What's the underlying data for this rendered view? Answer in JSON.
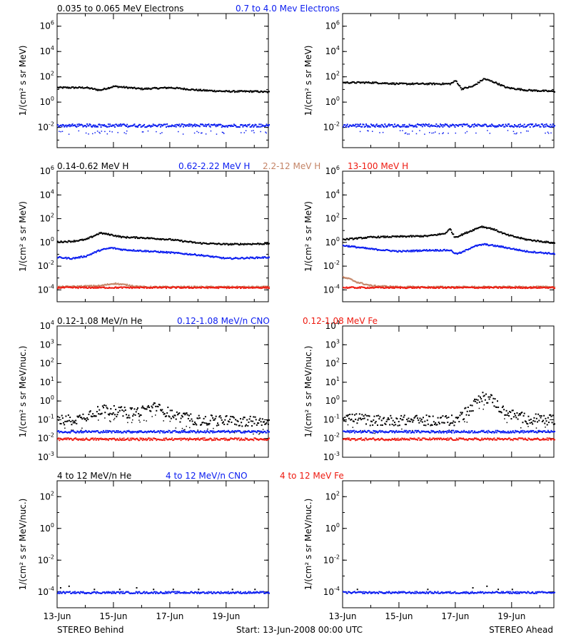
{
  "colors": {
    "black": "#000000",
    "blue": "#0a1cf0",
    "brown": "#c48466",
    "red": "#ee1a10"
  },
  "footer": {
    "left": "STEREO Behind",
    "center": "Start: 13-Jun-2008 00:00 UTC",
    "right": "STEREO Ahead"
  },
  "x_ticks": [
    "13-Jun",
    "15-Jun",
    "17-Jun",
    "19-Jun"
  ],
  "rows": [
    {
      "ylabel": "1/(cm² s sr MeV)",
      "legend": [
        {
          "text": "0.035 to 0.065 MeV Electrons",
          "color": "black"
        },
        {
          "text": "0.7 to 4.0 Mev Electrons",
          "color": "blue"
        }
      ],
      "y_ticks": [
        {
          "mant": "10",
          "exp": "6",
          "v": 6
        },
        {
          "mant": "10",
          "exp": "4",
          "v": 4
        },
        {
          "mant": "10",
          "exp": "2",
          "v": 2
        },
        {
          "mant": "10",
          "exp": "0",
          "v": 0
        },
        {
          "mant": "10",
          "exp": "-2",
          "v": -2
        }
      ]
    },
    {
      "ylabel": "1/(cm² s sr MeV)",
      "legend": [
        {
          "text": "0.14-0.62 MeV H",
          "color": "black"
        },
        {
          "text": "0.62-2.22 MeV H",
          "color": "blue"
        },
        {
          "text": "2.2-12 MeV H",
          "color": "brown"
        },
        {
          "text": "13-100 MeV H",
          "color": "red"
        }
      ],
      "y_ticks": [
        {
          "mant": "10",
          "exp": "6",
          "v": 6
        },
        {
          "mant": "10",
          "exp": "4",
          "v": 4
        },
        {
          "mant": "10",
          "exp": "2",
          "v": 2
        },
        {
          "mant": "10",
          "exp": "0",
          "v": 0
        },
        {
          "mant": "10",
          "exp": "-2",
          "v": -2
        },
        {
          "mant": "10",
          "exp": "-4",
          "v": -4
        }
      ]
    },
    {
      "ylabel": "1/(cm² s sr MeV/nuc.)",
      "legend": [
        {
          "text": "0.12-1.08 MeV/n He",
          "color": "black"
        },
        {
          "text": "0.12-1.08 MeV/n CNO",
          "color": "blue"
        },
        {
          "text": "0.12-1.08 MeV Fe",
          "color": "red"
        }
      ],
      "y_ticks": [
        {
          "mant": "10",
          "exp": "4",
          "v": 4
        },
        {
          "mant": "10",
          "exp": "3",
          "v": 3
        },
        {
          "mant": "10",
          "exp": "2",
          "v": 2
        },
        {
          "mant": "10",
          "exp": "1",
          "v": 1
        },
        {
          "mant": "10",
          "exp": "0",
          "v": 0
        },
        {
          "mant": "10",
          "exp": "-1",
          "v": -1
        },
        {
          "mant": "10",
          "exp": "-2",
          "v": -2
        },
        {
          "mant": "10",
          "exp": "-3",
          "v": -3
        }
      ]
    },
    {
      "ylabel": "1/(cm² s sr MeV/nuc.)",
      "legend": [
        {
          "text": "4 to 12 MeV/n He",
          "color": "black"
        },
        {
          "text": "4 to 12 MeV/n CNO",
          "color": "blue"
        },
        {
          "text": "4 to 12 MeV Fe",
          "color": "red"
        }
      ],
      "y_ticks": [
        {
          "mant": "10",
          "exp": "2",
          "v": 2
        },
        {
          "mant": "10",
          "exp": "0",
          "v": 0
        },
        {
          "mant": "10",
          "exp": "-2",
          "v": -2
        },
        {
          "mant": "10",
          "exp": "-4",
          "v": -4
        }
      ]
    }
  ],
  "chart_data": [
    {
      "panel": "STEREO Behind electrons",
      "type": "scatter",
      "x_unit": "days since 13-Jun-2008",
      "yscale": "log",
      "ylim_log10": [
        -3.6,
        7
      ],
      "xlim": [
        0,
        7.5
      ],
      "series": [
        {
          "name": "0.035 to 0.065 MeV Electrons",
          "color": "black",
          "x": [
            0,
            1,
            1.5,
            2,
            3,
            4,
            5,
            6,
            7,
            7.5
          ],
          "y_log10": [
            1.2,
            1.2,
            1.0,
            1.3,
            1.1,
            1.2,
            1.0,
            0.9,
            0.9,
            0.85
          ]
        },
        {
          "name": "0.7 to 4.0 Mev Electrons",
          "color": "blue",
          "x": [
            0,
            2,
            4,
            6,
            7.5
          ],
          "y_log10": [
            -1.8,
            -1.8,
            -1.8,
            -1.8,
            -1.8
          ]
        }
      ]
    },
    {
      "panel": "STEREO Ahead electrons",
      "type": "scatter",
      "x_unit": "days since 13-Jun-2008",
      "yscale": "log",
      "ylim_log10": [
        -3.6,
        7
      ],
      "xlim": [
        0,
        7.5
      ],
      "series": [
        {
          "name": "0.035 to 0.065 MeV Electrons",
          "color": "black",
          "x": [
            0,
            1,
            2,
            3,
            3.8,
            4.0,
            4.2,
            4.6,
            5.0,
            5.4,
            5.8,
            6.5,
            7.5
          ],
          "y_log10": [
            1.6,
            1.6,
            1.5,
            1.5,
            1.5,
            1.75,
            1.1,
            1.3,
            1.9,
            1.6,
            1.2,
            1.0,
            0.9
          ]
        },
        {
          "name": "0.7 to 4.0 Mev Electrons",
          "color": "blue",
          "x": [
            0,
            2,
            4,
            6,
            7.5
          ],
          "y_log10": [
            -1.8,
            -1.8,
            -1.8,
            -1.8,
            -1.8
          ]
        }
      ]
    },
    {
      "panel": "STEREO Behind protons",
      "type": "scatter",
      "x_unit": "days since 13-Jun-2008",
      "yscale": "log",
      "ylim_log10": [
        -5,
        6
      ],
      "xlim": [
        0,
        7.5
      ],
      "series": [
        {
          "name": "0.14-0.62 MeV H",
          "color": "black",
          "x": [
            0,
            0.5,
            1.0,
            1.5,
            1.9,
            2.3,
            3.0,
            4.0,
            5.0,
            6.0,
            7.5
          ],
          "y_log10": [
            0.1,
            0.15,
            0.3,
            0.85,
            0.7,
            0.5,
            0.45,
            0.3,
            0.0,
            -0.1,
            -0.05
          ]
        },
        {
          "name": "0.62-2.22 MeV H",
          "color": "blue",
          "x": [
            0,
            0.5,
            1.0,
            1.5,
            1.9,
            2.3,
            3.0,
            4.0,
            5.0,
            6.0,
            7.5
          ],
          "y_log10": [
            -1.2,
            -1.3,
            -1.1,
            -0.6,
            -0.4,
            -0.55,
            -0.65,
            -0.8,
            -1.0,
            -1.3,
            -1.2
          ]
        },
        {
          "name": "2.2-12 MeV H",
          "color": "brown",
          "x": [
            0,
            1.5,
            2.0,
            3.0,
            5.0,
            7.5
          ],
          "y_log10": [
            -3.7,
            -3.6,
            -3.4,
            -3.7,
            -3.7,
            -3.7
          ]
        },
        {
          "name": "13-100 MeV H",
          "color": "red",
          "x": [
            0,
            2,
            4,
            6,
            7.5
          ],
          "y_log10": [
            -3.75,
            -3.75,
            -3.75,
            -3.75,
            -3.75
          ]
        }
      ]
    },
    {
      "panel": "STEREO Ahead protons",
      "type": "scatter",
      "x_unit": "days since 13-Jun-2008",
      "yscale": "log",
      "ylim_log10": [
        -5,
        6
      ],
      "xlim": [
        0,
        7.5
      ],
      "series": [
        {
          "name": "0.14-0.62 MeV H",
          "color": "black",
          "x": [
            0,
            1,
            2,
            3,
            3.6,
            3.8,
            3.95,
            4.1,
            4.5,
            4.9,
            5.3,
            5.8,
            6.5,
            7.5
          ],
          "y_log10": [
            0.3,
            0.5,
            0.55,
            0.6,
            0.8,
            1.2,
            0.5,
            0.6,
            1.0,
            1.4,
            1.2,
            0.7,
            0.3,
            0.0
          ]
        },
        {
          "name": "0.62-2.22 MeV H",
          "color": "blue",
          "x": [
            0,
            1,
            2,
            3,
            3.8,
            4.0,
            4.2,
            4.6,
            5.0,
            5.6,
            6.5,
            7.5
          ],
          "y_log10": [
            -0.2,
            -0.5,
            -0.7,
            -0.6,
            -0.6,
            -0.9,
            -0.8,
            -0.3,
            -0.1,
            -0.3,
            -0.7,
            -0.9
          ]
        },
        {
          "name": "2.2-12 MeV H",
          "color": "brown",
          "x": [
            0,
            0.2,
            0.5,
            1.0,
            2.0,
            4.0,
            7.5
          ],
          "y_log10": [
            -2.9,
            -3.0,
            -3.3,
            -3.6,
            -3.7,
            -3.7,
            -3.7
          ]
        },
        {
          "name": "13-100 MeV H",
          "color": "red",
          "x": [
            0,
            2,
            4,
            6,
            7.5
          ],
          "y_log10": [
            -3.75,
            -3.75,
            -3.75,
            -3.75,
            -3.75
          ]
        }
      ]
    },
    {
      "panel": "STEREO Behind suprathermal ions",
      "type": "scatter",
      "x_unit": "days since 13-Jun-2008",
      "yscale": "log",
      "ylim_log10": [
        -3,
        4
      ],
      "xlim": [
        0,
        7.5
      ],
      "series": [
        {
          "name": "0.12-1.08 MeV/n He",
          "color": "black",
          "x": [
            0,
            0.8,
            1.2,
            1.6,
            2.0,
            2.5,
            3.0,
            3.4,
            3.8,
            4.3,
            5.0,
            6.0,
            7.5
          ],
          "y_log10": [
            -1.0,
            -0.9,
            -0.6,
            -0.4,
            -0.5,
            -0.6,
            -0.5,
            -0.3,
            -0.5,
            -0.8,
            -1.0,
            -1.0,
            -1.1
          ]
        },
        {
          "name": "0.12-1.08 MeV/n CNO",
          "color": "blue",
          "x": [
            0,
            2,
            4,
            6,
            7.5
          ],
          "y_log10": [
            -1.6,
            -1.6,
            -1.6,
            -1.6,
            -1.6
          ]
        },
        {
          "name": "0.12-1.08 MeV Fe",
          "color": "red",
          "x": [
            0,
            2,
            4,
            6,
            7.5
          ],
          "y_log10": [
            -2.0,
            -2.0,
            -2.0,
            -2.0,
            -2.0
          ]
        }
      ]
    },
    {
      "panel": "STEREO Ahead suprathermal ions",
      "type": "scatter",
      "x_unit": "days since 13-Jun-2008",
      "yscale": "log",
      "ylim_log10": [
        -3,
        4
      ],
      "xlim": [
        0,
        7.5
      ],
      "series": [
        {
          "name": "0.12-1.08 MeV/n He",
          "color": "black",
          "x": [
            0,
            1,
            2,
            3,
            4.0,
            4.5,
            4.9,
            5.3,
            5.6,
            6.0,
            6.5,
            7.5
          ],
          "y_log10": [
            -0.8,
            -1.0,
            -1.0,
            -1.0,
            -1.0,
            -0.4,
            0.3,
            0.1,
            -0.4,
            -0.7,
            -0.9,
            -1.0
          ]
        },
        {
          "name": "0.12-1.08 MeV/n CNO",
          "color": "blue",
          "x": [
            0,
            2,
            4,
            6,
            7.5
          ],
          "y_log10": [
            -1.6,
            -1.6,
            -1.6,
            -1.6,
            -1.6
          ]
        },
        {
          "name": "0.12-1.08 MeV Fe",
          "color": "red",
          "x": [
            0,
            2,
            4,
            6,
            7.5
          ],
          "y_log10": [
            -2.0,
            -2.0,
            -2.0,
            -2.0,
            -2.0
          ]
        }
      ]
    },
    {
      "panel": "STEREO Behind energetic ions",
      "type": "scatter",
      "x_unit": "days since 13-Jun-2008",
      "yscale": "log",
      "ylim_log10": [
        -5,
        3
      ],
      "xlim": [
        0,
        7.5
      ],
      "series": [
        {
          "name": "4 to 12 MeV/n He",
          "color": "black",
          "x": [
            0.1,
            0.4,
            1.3,
            2.2,
            2.8,
            3.4,
            4.1,
            5.0,
            6.2,
            7.0
          ],
          "y_log10": [
            -3.7,
            -3.6,
            -3.8,
            -3.8,
            -3.7,
            -3.8,
            -3.8,
            -3.8,
            -3.8,
            -3.8
          ]
        },
        {
          "name": "4 to 12 MeV/n CNO",
          "color": "blue",
          "x": [
            0,
            2,
            4,
            6,
            7.5
          ],
          "y_log10": [
            -4.0,
            -4.0,
            -4.0,
            -4.0,
            -4.0
          ]
        },
        {
          "name": "4 to 12 MeV Fe",
          "color": "red",
          "x": [],
          "y_log10": []
        }
      ]
    },
    {
      "panel": "STEREO Ahead energetic ions",
      "type": "scatter",
      "x_unit": "days since 13-Jun-2008",
      "yscale": "log",
      "ylim_log10": [
        -5,
        3
      ],
      "xlim": [
        0,
        7.5
      ],
      "series": [
        {
          "name": "4 to 12 MeV/n He",
          "color": "black",
          "x": [
            0.5,
            3.0,
            4.6,
            5.1,
            5.5,
            6.0
          ],
          "y_log10": [
            -3.8,
            -3.8,
            -3.7,
            -3.6,
            -3.8,
            -3.8
          ]
        },
        {
          "name": "4 to 12 MeV/n CNO",
          "color": "blue",
          "x": [
            0,
            2,
            4,
            6,
            7.5
          ],
          "y_log10": [
            -4.0,
            -4.0,
            -4.0,
            -4.0,
            -4.0
          ]
        },
        {
          "name": "4 to 12 MeV Fe",
          "color": "red",
          "x": [],
          "y_log10": []
        }
      ]
    }
  ]
}
